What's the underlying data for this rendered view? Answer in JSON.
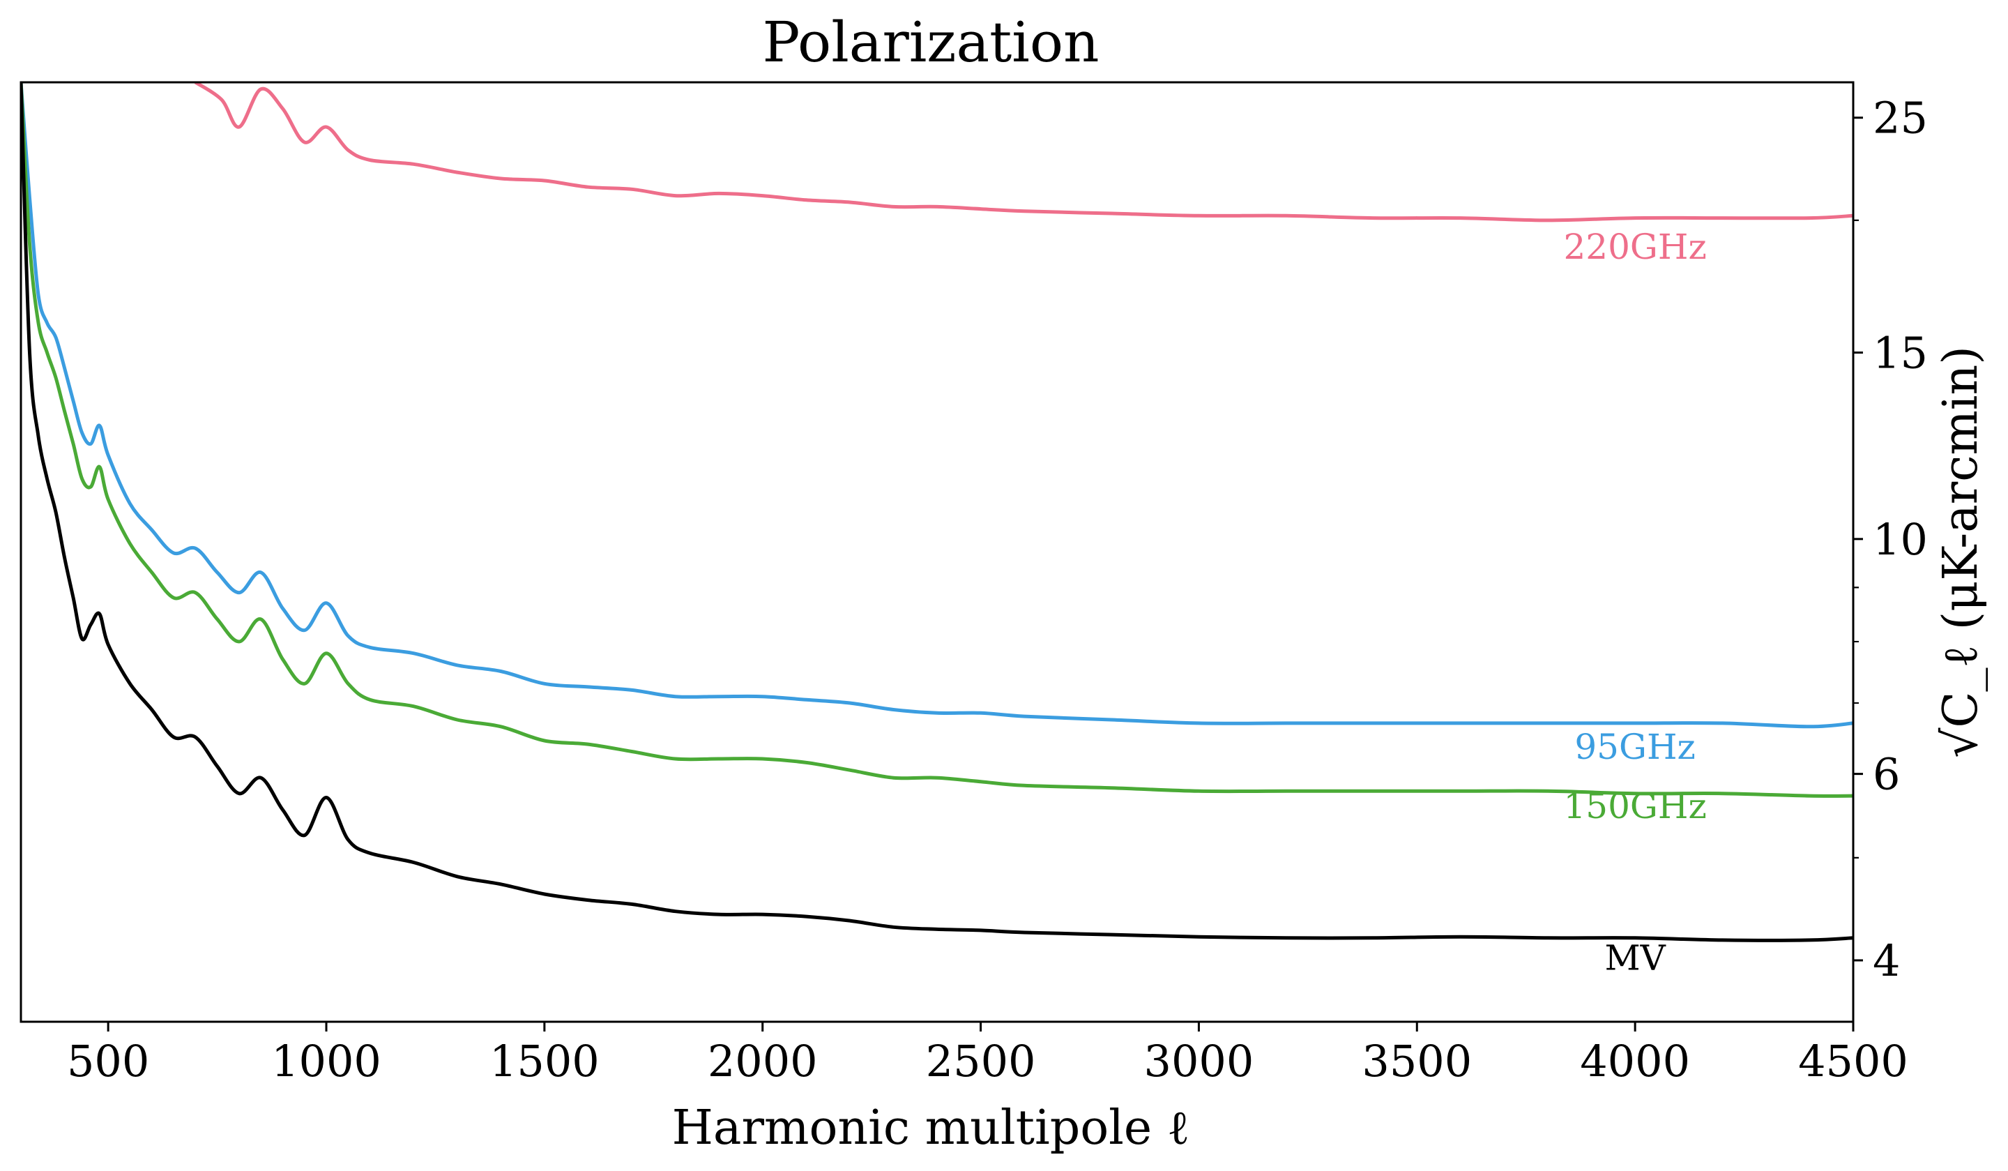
{
  "chart_data": {
    "type": "line",
    "title": "Polarization",
    "xlabel": "Harmonic multipole ℓ",
    "ylabel": "√C_ℓ (μK-arcmin)",
    "xlim": [
      300,
      4500
    ],
    "ylim": [
      3.5,
      27
    ],
    "yscale": "log",
    "x_ticks": [
      500,
      1000,
      1500,
      2000,
      2500,
      3000,
      3500,
      4000,
      4500
    ],
    "x_tick_labels": [
      "500",
      "1000",
      "1500",
      "2000",
      "2500",
      "3000",
      "3500",
      "4000",
      "4500"
    ],
    "y_ticks": [
      4,
      6,
      10,
      15,
      25
    ],
    "y_tick_labels": [
      "4",
      "6",
      "10",
      "15",
      "25"
    ],
    "y_axis_side": "right",
    "grid": false,
    "legend": "none",
    "series": [
      {
        "name": "220GHz",
        "color": "#ee6e8a",
        "x": [
          700,
          760,
          800,
          850,
          900,
          950,
          1000,
          1050,
          1100,
          1200,
          1300,
          1400,
          1500,
          1600,
          1700,
          1800,
          1900,
          2000,
          2100,
          2200,
          2300,
          2400,
          2500,
          2600,
          2800,
          3000,
          3200,
          3400,
          3600,
          3800,
          4000,
          4200,
          4400,
          4500
        ],
        "y": [
          27,
          26.0,
          24.5,
          26.6,
          25.5,
          23.7,
          24.5,
          23.3,
          22.8,
          22.6,
          22.2,
          21.9,
          21.8,
          21.5,
          21.4,
          21.1,
          21.2,
          21.1,
          20.9,
          20.8,
          20.6,
          20.6,
          20.5,
          20.4,
          20.3,
          20.2,
          20.2,
          20.1,
          20.1,
          20.0,
          20.1,
          20.1,
          20.1,
          20.2
        ]
      },
      {
        "name": "95GHz",
        "color": "#3b9de0",
        "x": [
          300,
          320,
          340,
          360,
          380,
          400,
          420,
          440,
          460,
          480,
          500,
          550,
          600,
          650,
          700,
          750,
          800,
          850,
          900,
          950,
          1000,
          1050,
          1100,
          1200,
          1300,
          1400,
          1500,
          1600,
          1700,
          1800,
          1900,
          2000,
          2100,
          2200,
          2300,
          2400,
          2500,
          2600,
          2800,
          3000,
          3200,
          3400,
          3600,
          3800,
          4000,
          4200,
          4400,
          4500
        ],
        "y": [
          27,
          21,
          17,
          16,
          15.5,
          14.5,
          13.5,
          12.6,
          12.3,
          12.8,
          12.0,
          10.8,
          10.2,
          9.7,
          9.8,
          9.3,
          8.9,
          9.3,
          8.6,
          8.2,
          8.7,
          8.1,
          7.9,
          7.8,
          7.6,
          7.5,
          7.3,
          7.25,
          7.2,
          7.1,
          7.1,
          7.1,
          7.05,
          7.0,
          6.9,
          6.85,
          6.85,
          6.8,
          6.75,
          6.7,
          6.7,
          6.7,
          6.7,
          6.7,
          6.7,
          6.7,
          6.65,
          6.7
        ]
      },
      {
        "name": "150GHz",
        "color": "#4aaa36",
        "x": [
          300,
          320,
          340,
          360,
          380,
          400,
          420,
          440,
          460,
          480,
          500,
          550,
          600,
          650,
          700,
          750,
          800,
          850,
          900,
          950,
          1000,
          1050,
          1100,
          1200,
          1300,
          1400,
          1500,
          1600,
          1700,
          1800,
          1900,
          2000,
          2100,
          2200,
          2300,
          2400,
          2500,
          2600,
          2800,
          3000,
          3200,
          3400,
          3600,
          3800,
          4000,
          4200,
          4400,
          4500
        ],
        "y": [
          27,
          19,
          16,
          15,
          14.2,
          13.2,
          12.3,
          11.4,
          11.2,
          11.7,
          10.9,
          9.9,
          9.3,
          8.8,
          8.9,
          8.4,
          8.0,
          8.4,
          7.7,
          7.3,
          7.8,
          7.3,
          7.05,
          6.95,
          6.75,
          6.65,
          6.45,
          6.4,
          6.3,
          6.2,
          6.2,
          6.2,
          6.15,
          6.05,
          5.95,
          5.95,
          5.9,
          5.85,
          5.82,
          5.78,
          5.78,
          5.78,
          5.78,
          5.78,
          5.75,
          5.75,
          5.72,
          5.72
        ]
      },
      {
        "name": "MV",
        "color": "#000000",
        "x": [
          300,
          320,
          340,
          360,
          380,
          400,
          420,
          440,
          460,
          480,
          500,
          550,
          600,
          650,
          700,
          750,
          800,
          850,
          900,
          950,
          1000,
          1050,
          1100,
          1200,
          1300,
          1400,
          1500,
          1600,
          1700,
          1800,
          1900,
          2000,
          2100,
          2200,
          2300,
          2400,
          2500,
          2600,
          2800,
          3000,
          3200,
          3400,
          3600,
          3800,
          4000,
          4200,
          4400,
          4500
        ],
        "y": [
          27,
          15,
          12.5,
          11.4,
          10.6,
          9.6,
          8.8,
          8.05,
          8.3,
          8.5,
          7.95,
          7.3,
          6.9,
          6.5,
          6.5,
          6.1,
          5.75,
          5.95,
          5.55,
          5.25,
          5.7,
          5.2,
          5.05,
          4.95,
          4.8,
          4.72,
          4.62,
          4.56,
          4.52,
          4.45,
          4.42,
          4.42,
          4.4,
          4.36,
          4.3,
          4.28,
          4.27,
          4.25,
          4.23,
          4.21,
          4.2,
          4.2,
          4.21,
          4.2,
          4.2,
          4.18,
          4.18,
          4.2
        ]
      }
    ],
    "annotations": [
      {
        "text": "220GHz",
        "x": 4000,
        "y": 18.4,
        "color": "#ee6e8a"
      },
      {
        "text": "95GHz",
        "x": 4000,
        "y": 6.2,
        "color": "#3b9de0"
      },
      {
        "text": "150GHz",
        "x": 4000,
        "y": 5.45,
        "color": "#4aaa36"
      },
      {
        "text": "MV",
        "x": 4000,
        "y": 3.92,
        "color": "#000000"
      }
    ]
  }
}
